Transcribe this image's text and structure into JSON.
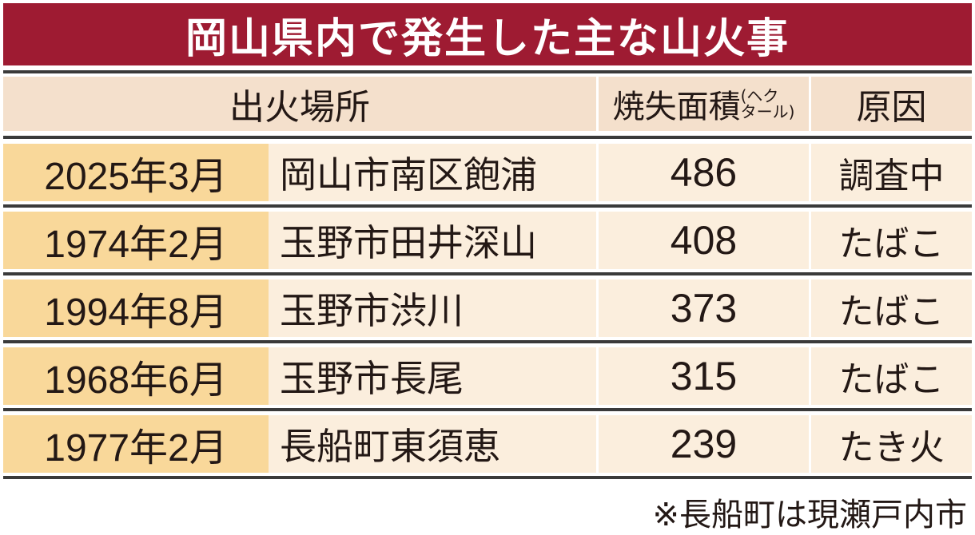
{
  "title": "岡山県内で発生した主な山火事",
  "headers": {
    "location": "出火場所",
    "area": "焼失面積",
    "area_unit_top": "(ヘク",
    "area_unit_bottom": "タール)",
    "cause": "原因"
  },
  "rows": [
    {
      "date": "2025年3月",
      "place": "岡山市南区飽浦",
      "area": "486",
      "cause": "調査中"
    },
    {
      "date": "1974年2月",
      "place": "玉野市田井深山",
      "area": "408",
      "cause": "たばこ"
    },
    {
      "date": "1994年8月",
      "place": "玉野市渋川",
      "area": "373",
      "cause": "たばこ"
    },
    {
      "date": "1968年6月",
      "place": "玉野市長尾",
      "area": "315",
      "cause": "たばこ"
    },
    {
      "date": "1977年2月",
      "place": "長船町東須恵",
      "area": "239",
      "cause": "たき火"
    }
  ],
  "footnote": "※長船町は現瀬戸内市",
  "colors": {
    "title_bg": "#9e1b32",
    "header_bg": "#f4e0cc",
    "date_bg": "#f9d89a",
    "row_bg": "#fbeedd"
  }
}
